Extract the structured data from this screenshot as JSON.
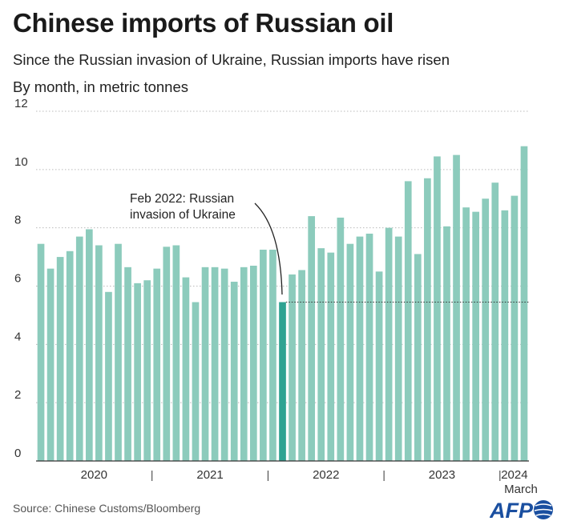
{
  "title": "Chinese imports of Russian oil",
  "subtitle": "Since the Russian invasion of Ukraine, Russian imports have risen",
  "unit_label": "By month, in metric tonnes",
  "source": "Source: Chinese Customs/Bloomberg",
  "logo_text": "AFP",
  "colors": {
    "bar": "#8ccbbc",
    "highlight": "#2fa392",
    "grid": "#bbbbbb",
    "axis": "#333333",
    "text": "#222222"
  },
  "annotation": {
    "line1": "Feb 2022: Russian",
    "line2": "invasion of Ukraine"
  },
  "last_month_label": "March",
  "chart_data": {
    "type": "bar",
    "ylim": [
      0,
      12
    ],
    "yticks": [
      0,
      2,
      4,
      6,
      8,
      10,
      12
    ],
    "grid": true,
    "highlight_index": 25,
    "year_labels": [
      {
        "label": "2020",
        "start": 0,
        "end": 11
      },
      {
        "label": "2021",
        "start": 12,
        "end": 23
      },
      {
        "label": "2022",
        "start": 24,
        "end": 35
      },
      {
        "label": "2023",
        "start": 36,
        "end": 47
      },
      {
        "label": "2024",
        "start": 48,
        "end": 50
      }
    ],
    "x": [
      "2020-01",
      "2020-02",
      "2020-03",
      "2020-04",
      "2020-05",
      "2020-06",
      "2020-07",
      "2020-08",
      "2020-09",
      "2020-10",
      "2020-11",
      "2020-12",
      "2021-01",
      "2021-02",
      "2021-03",
      "2021-04",
      "2021-05",
      "2021-06",
      "2021-07",
      "2021-08",
      "2021-09",
      "2021-10",
      "2021-11",
      "2021-12",
      "2022-01",
      "2022-02",
      "2022-03",
      "2022-04",
      "2022-05",
      "2022-06",
      "2022-07",
      "2022-08",
      "2022-09",
      "2022-10",
      "2022-11",
      "2022-12",
      "2023-01",
      "2023-02",
      "2023-03",
      "2023-04",
      "2023-05",
      "2023-06",
      "2023-07",
      "2023-08",
      "2023-09",
      "2023-10",
      "2023-11",
      "2023-12",
      "2024-01",
      "2024-02",
      "2024-03"
    ],
    "values": [
      7.45,
      6.6,
      7.0,
      7.2,
      7.7,
      7.95,
      7.4,
      5.8,
      7.45,
      6.65,
      6.1,
      6.2,
      6.6,
      7.35,
      7.4,
      6.3,
      5.45,
      6.65,
      6.65,
      6.6,
      6.15,
      6.65,
      6.7,
      7.25,
      7.25,
      5.45,
      6.4,
      6.55,
      8.4,
      7.3,
      7.15,
      8.35,
      7.45,
      7.7,
      7.8,
      6.5,
      8.0,
      7.7,
      9.6,
      7.1,
      9.7,
      10.45,
      8.05,
      10.5,
      8.7,
      8.55,
      9.0,
      9.55,
      8.6,
      9.1,
      10.8
    ]
  }
}
